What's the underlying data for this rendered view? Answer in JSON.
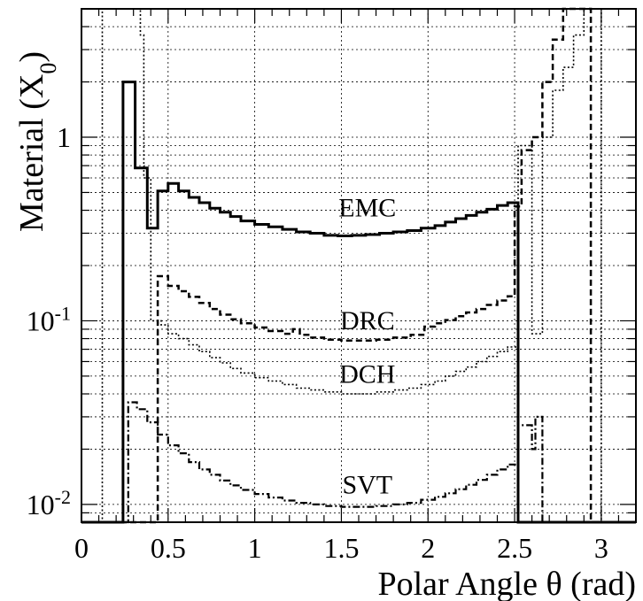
{
  "chart_data": {
    "type": "line",
    "xlabel": "Polar Angle θ (rad)",
    "ylabel": "Material (X",
    "ylabel_sub": "0",
    "ylabel_close": ")",
    "xlim": [
      0,
      3.2
    ],
    "ylim": [
      0.008,
      5
    ],
    "yscale": "log",
    "grid": true,
    "x_ticks": [
      0,
      0.5,
      1,
      1.5,
      2,
      2.5,
      3
    ],
    "x_tick_labels": [
      "0",
      "0.5",
      "1",
      "1.5",
      "2",
      "2.5",
      "3"
    ],
    "y_major_ticks": [
      {
        "value": 0.01,
        "base": "10",
        "exp": "-2"
      },
      {
        "value": 0.1,
        "base": "10",
        "exp": "-1"
      },
      {
        "value": 1,
        "base": "1",
        "exp": ""
      }
    ],
    "labels": [
      {
        "text": "EMC",
        "x": 1.65,
        "y": 0.37
      },
      {
        "text": "DRC",
        "x": 1.65,
        "y": 0.09
      },
      {
        "text": "DCH",
        "x": 1.65,
        "y": 0.046
      },
      {
        "text": "SVT",
        "x": 1.65,
        "y": 0.0115
      }
    ],
    "series": [
      {
        "key": "EMC",
        "style": "solid",
        "width": 3,
        "points": [
          [
            0,
            0.008
          ],
          [
            0.24,
            0.008
          ],
          [
            0.24,
            2.0
          ],
          [
            0.31,
            2.0
          ],
          [
            0.31,
            0.68
          ],
          [
            0.38,
            0.68
          ],
          [
            0.38,
            0.32
          ],
          [
            0.44,
            0.32
          ],
          [
            0.44,
            0.51
          ],
          [
            0.5,
            0.51
          ],
          [
            0.5,
            0.56
          ],
          [
            0.56,
            0.56
          ],
          [
            0.56,
            0.51
          ],
          [
            0.62,
            0.51
          ],
          [
            0.62,
            0.47
          ],
          [
            0.68,
            0.47
          ],
          [
            0.68,
            0.44
          ],
          [
            0.74,
            0.44
          ],
          [
            0.74,
            0.41
          ],
          [
            0.8,
            0.41
          ],
          [
            0.8,
            0.39
          ],
          [
            0.86,
            0.39
          ],
          [
            0.86,
            0.37
          ],
          [
            0.92,
            0.37
          ],
          [
            0.92,
            0.35
          ],
          [
            1.0,
            0.35
          ],
          [
            1.0,
            0.335
          ],
          [
            1.08,
            0.335
          ],
          [
            1.08,
            0.325
          ],
          [
            1.16,
            0.325
          ],
          [
            1.16,
            0.315
          ],
          [
            1.24,
            0.315
          ],
          [
            1.24,
            0.305
          ],
          [
            1.32,
            0.305
          ],
          [
            1.32,
            0.3
          ],
          [
            1.4,
            0.3
          ],
          [
            1.4,
            0.292
          ],
          [
            1.48,
            0.292
          ],
          [
            1.48,
            0.29
          ],
          [
            1.56,
            0.29
          ],
          [
            1.56,
            0.292
          ],
          [
            1.64,
            0.292
          ],
          [
            1.64,
            0.295
          ],
          [
            1.72,
            0.295
          ],
          [
            1.72,
            0.3
          ],
          [
            1.8,
            0.3
          ],
          [
            1.8,
            0.305
          ],
          [
            1.88,
            0.305
          ],
          [
            1.88,
            0.31
          ],
          [
            1.96,
            0.31
          ],
          [
            1.96,
            0.32
          ],
          [
            2.04,
            0.32
          ],
          [
            2.04,
            0.33
          ],
          [
            2.1,
            0.33
          ],
          [
            2.1,
            0.345
          ],
          [
            2.16,
            0.345
          ],
          [
            2.16,
            0.36
          ],
          [
            2.22,
            0.36
          ],
          [
            2.22,
            0.375
          ],
          [
            2.28,
            0.375
          ],
          [
            2.28,
            0.39
          ],
          [
            2.34,
            0.39
          ],
          [
            2.34,
            0.405
          ],
          [
            2.4,
            0.405
          ],
          [
            2.4,
            0.425
          ],
          [
            2.46,
            0.425
          ],
          [
            2.46,
            0.44
          ],
          [
            2.52,
            0.44
          ],
          [
            2.52,
            0.008
          ],
          [
            3.2,
            0.008
          ]
        ]
      },
      {
        "key": "DRC",
        "style": "dashed",
        "width": 2.5,
        "points": [
          [
            0,
            0.008
          ],
          [
            0.44,
            0.008
          ],
          [
            0.44,
            0.175
          ],
          [
            0.5,
            0.175
          ],
          [
            0.5,
            0.155
          ],
          [
            0.56,
            0.155
          ],
          [
            0.56,
            0.145
          ],
          [
            0.62,
            0.145
          ],
          [
            0.62,
            0.135
          ],
          [
            0.68,
            0.135
          ],
          [
            0.68,
            0.125
          ],
          [
            0.74,
            0.125
          ],
          [
            0.74,
            0.116
          ],
          [
            0.8,
            0.116
          ],
          [
            0.8,
            0.108
          ],
          [
            0.86,
            0.108
          ],
          [
            0.86,
            0.102
          ],
          [
            0.92,
            0.102
          ],
          [
            0.92,
            0.097
          ],
          [
            1.0,
            0.097
          ],
          [
            1.0,
            0.092
          ],
          [
            1.08,
            0.092
          ],
          [
            1.08,
            0.088
          ],
          [
            1.16,
            0.088
          ],
          [
            1.16,
            0.085
          ],
          [
            1.22,
            0.085
          ],
          [
            1.22,
            0.09
          ],
          [
            1.26,
            0.09
          ],
          [
            1.26,
            0.084
          ],
          [
            1.32,
            0.084
          ],
          [
            1.32,
            0.081
          ],
          [
            1.4,
            0.081
          ],
          [
            1.4,
            0.079
          ],
          [
            1.5,
            0.079
          ],
          [
            1.5,
            0.078
          ],
          [
            1.7,
            0.078
          ],
          [
            1.7,
            0.079
          ],
          [
            1.8,
            0.079
          ],
          [
            1.8,
            0.081
          ],
          [
            1.9,
            0.081
          ],
          [
            1.9,
            0.084
          ],
          [
            1.98,
            0.084
          ],
          [
            1.98,
            0.093
          ],
          [
            2.04,
            0.093
          ],
          [
            2.04,
            0.097
          ],
          [
            2.1,
            0.097
          ],
          [
            2.1,
            0.101
          ],
          [
            2.16,
            0.101
          ],
          [
            2.16,
            0.106
          ],
          [
            2.22,
            0.106
          ],
          [
            2.22,
            0.111
          ],
          [
            2.28,
            0.111
          ],
          [
            2.28,
            0.116
          ],
          [
            2.34,
            0.116
          ],
          [
            2.34,
            0.122
          ],
          [
            2.4,
            0.122
          ],
          [
            2.4,
            0.129
          ],
          [
            2.46,
            0.129
          ],
          [
            2.46,
            0.136
          ],
          [
            2.5,
            0.136
          ],
          [
            2.5,
            0.42
          ],
          [
            2.54,
            0.42
          ],
          [
            2.54,
            0.85
          ],
          [
            2.6,
            0.85
          ],
          [
            2.6,
            1.0
          ],
          [
            2.66,
            1.0
          ],
          [
            2.66,
            2.0
          ],
          [
            2.72,
            2.0
          ],
          [
            2.72,
            3.4
          ],
          [
            2.78,
            3.4
          ],
          [
            2.78,
            5
          ],
          [
            2.94,
            5
          ],
          [
            2.94,
            0.008
          ],
          [
            3.2,
            0.008
          ]
        ]
      },
      {
        "key": "DCH",
        "style": "dotted",
        "width": 1.6,
        "points": [
          [
            0,
            0.008
          ],
          [
            0.12,
            0.008
          ],
          [
            0.12,
            5
          ],
          [
            0.34,
            5
          ],
          [
            0.34,
            3.6
          ],
          [
            0.36,
            3.6
          ],
          [
            0.36,
            0.6
          ],
          [
            0.4,
            0.6
          ],
          [
            0.4,
            0.1
          ],
          [
            0.46,
            0.1
          ],
          [
            0.46,
            0.095
          ],
          [
            0.5,
            0.095
          ],
          [
            0.5,
            0.085
          ],
          [
            0.56,
            0.085
          ],
          [
            0.56,
            0.08
          ],
          [
            0.62,
            0.08
          ],
          [
            0.62,
            0.074
          ],
          [
            0.68,
            0.074
          ],
          [
            0.68,
            0.068
          ],
          [
            0.74,
            0.068
          ],
          [
            0.74,
            0.063
          ],
          [
            0.8,
            0.063
          ],
          [
            0.8,
            0.059
          ],
          [
            0.86,
            0.059
          ],
          [
            0.86,
            0.055
          ],
          [
            0.92,
            0.055
          ],
          [
            0.92,
            0.052
          ],
          [
            1.0,
            0.052
          ],
          [
            1.0,
            0.049
          ],
          [
            1.08,
            0.049
          ],
          [
            1.08,
            0.047
          ],
          [
            1.16,
            0.047
          ],
          [
            1.16,
            0.045
          ],
          [
            1.24,
            0.045
          ],
          [
            1.24,
            0.043
          ],
          [
            1.32,
            0.043
          ],
          [
            1.32,
            0.042
          ],
          [
            1.4,
            0.042
          ],
          [
            1.4,
            0.041
          ],
          [
            1.5,
            0.041
          ],
          [
            1.5,
            0.04
          ],
          [
            1.7,
            0.04
          ],
          [
            1.7,
            0.041
          ],
          [
            1.8,
            0.041
          ],
          [
            1.8,
            0.042
          ],
          [
            1.88,
            0.042
          ],
          [
            1.88,
            0.043
          ],
          [
            1.96,
            0.043
          ],
          [
            1.96,
            0.045
          ],
          [
            2.04,
            0.045
          ],
          [
            2.04,
            0.047
          ],
          [
            2.1,
            0.047
          ],
          [
            2.1,
            0.05
          ],
          [
            2.16,
            0.05
          ],
          [
            2.16,
            0.053
          ],
          [
            2.22,
            0.053
          ],
          [
            2.22,
            0.056
          ],
          [
            2.28,
            0.056
          ],
          [
            2.28,
            0.06
          ],
          [
            2.34,
            0.06
          ],
          [
            2.34,
            0.064
          ],
          [
            2.4,
            0.064
          ],
          [
            2.4,
            0.068
          ],
          [
            2.46,
            0.068
          ],
          [
            2.46,
            0.072
          ],
          [
            2.52,
            0.072
          ],
          [
            2.52,
            0.9
          ],
          [
            2.6,
            0.9
          ],
          [
            2.6,
            0.085
          ],
          [
            2.66,
            0.085
          ],
          [
            2.66,
            1.0
          ],
          [
            2.72,
            1.0
          ],
          [
            2.72,
            1.8
          ],
          [
            2.78,
            1.8
          ],
          [
            2.78,
            2.4
          ],
          [
            2.84,
            2.4
          ],
          [
            2.84,
            3.6
          ],
          [
            2.9,
            3.6
          ],
          [
            2.9,
            5
          ],
          [
            3.0,
            5
          ],
          [
            3.0,
            0.008
          ],
          [
            3.2,
            0.008
          ]
        ]
      },
      {
        "key": "SVT",
        "style": "dashdot",
        "width": 2.2,
        "points": [
          [
            0,
            0.008
          ],
          [
            0.27,
            0.008
          ],
          [
            0.27,
            0.036
          ],
          [
            0.32,
            0.036
          ],
          [
            0.32,
            0.033
          ],
          [
            0.38,
            0.033
          ],
          [
            0.38,
            0.028
          ],
          [
            0.44,
            0.028
          ],
          [
            0.44,
            0.024
          ],
          [
            0.5,
            0.024
          ],
          [
            0.5,
            0.021
          ],
          [
            0.56,
            0.021
          ],
          [
            0.56,
            0.019
          ],
          [
            0.62,
            0.019
          ],
          [
            0.62,
            0.017
          ],
          [
            0.68,
            0.017
          ],
          [
            0.68,
            0.0155
          ],
          [
            0.74,
            0.0155
          ],
          [
            0.74,
            0.0145
          ],
          [
            0.8,
            0.0145
          ],
          [
            0.8,
            0.0135
          ],
          [
            0.86,
            0.0135
          ],
          [
            0.86,
            0.0127
          ],
          [
            0.92,
            0.0127
          ],
          [
            0.92,
            0.012
          ],
          [
            1.0,
            0.012
          ],
          [
            1.0,
            0.0114
          ],
          [
            1.08,
            0.0114
          ],
          [
            1.08,
            0.0109
          ],
          [
            1.16,
            0.0109
          ],
          [
            1.16,
            0.0105
          ],
          [
            1.24,
            0.0105
          ],
          [
            1.24,
            0.0102
          ],
          [
            1.32,
            0.0102
          ],
          [
            1.32,
            0.01
          ],
          [
            1.4,
            0.01
          ],
          [
            1.4,
            0.0098
          ],
          [
            1.5,
            0.0098
          ],
          [
            1.5,
            0.0097
          ],
          [
            1.7,
            0.0097
          ],
          [
            1.7,
            0.0098
          ],
          [
            1.8,
            0.0098
          ],
          [
            1.8,
            0.01
          ],
          [
            1.88,
            0.01
          ],
          [
            1.88,
            0.0102
          ],
          [
            1.96,
            0.0102
          ],
          [
            1.96,
            0.0106
          ],
          [
            2.04,
            0.0106
          ],
          [
            2.04,
            0.011
          ],
          [
            2.1,
            0.011
          ],
          [
            2.1,
            0.0115
          ],
          [
            2.16,
            0.0115
          ],
          [
            2.16,
            0.0121
          ],
          [
            2.22,
            0.0121
          ],
          [
            2.22,
            0.0128
          ],
          [
            2.28,
            0.0128
          ],
          [
            2.28,
            0.0136
          ],
          [
            2.34,
            0.0136
          ],
          [
            2.34,
            0.0145
          ],
          [
            2.4,
            0.0145
          ],
          [
            2.4,
            0.0155
          ],
          [
            2.46,
            0.0155
          ],
          [
            2.46,
            0.0165
          ],
          [
            2.52,
            0.0165
          ],
          [
            2.52,
            0.027
          ],
          [
            2.6,
            0.027
          ],
          [
            2.6,
            0.02
          ],
          [
            2.62,
            0.02
          ],
          [
            2.62,
            0.03
          ],
          [
            2.66,
            0.03
          ],
          [
            2.66,
            0.008
          ],
          [
            3.2,
            0.008
          ]
        ]
      }
    ]
  }
}
